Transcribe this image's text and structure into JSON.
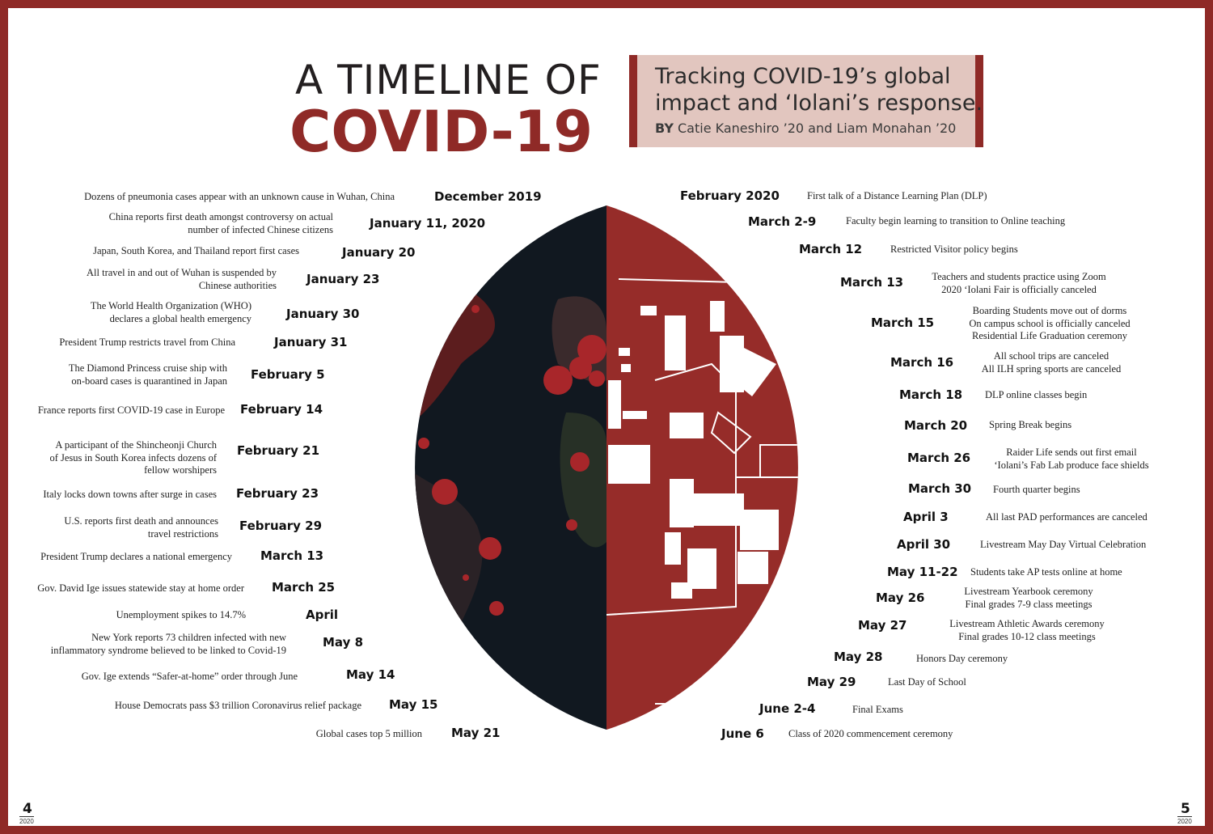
{
  "header": {
    "title_line1": "A TIMELINE OF",
    "title_line2": "COVID-19",
    "subtitle_line1": "Tracking COVID-19’s global",
    "subtitle_line2": "impact and ‘Iolani’s response.",
    "byline_prefix": "BY",
    "byline_names": "Catie Kaneshiro ’20 and Liam Monahan ’20"
  },
  "colors": {
    "accent": "#8f2a27",
    "globe_dark": "#111820",
    "subtitle_bg": "#e2c6bf"
  },
  "global_timeline": [
    {
      "date": "December 2019",
      "text": [
        "Dozens of pneumonia cases appear with an unknown cause in Wuhan, China"
      ]
    },
    {
      "date": "January 11, 2020",
      "text": [
        "China reports first death amongst controversy on actual",
        "number of infected Chinese citizens"
      ]
    },
    {
      "date": "January 20",
      "text": [
        "Japan, South Korea, and Thailand report first cases"
      ]
    },
    {
      "date": "January 23",
      "text": [
        "All travel in and out of Wuhan is suspended by",
        "Chinese authorities"
      ]
    },
    {
      "date": "January 30",
      "text": [
        "The World Health Organization (WHO)",
        "declares a global health emergency"
      ]
    },
    {
      "date": "January 31",
      "text": [
        "President Trump restricts travel from China"
      ]
    },
    {
      "date": "February 5",
      "text": [
        "The Diamond Princess cruise ship with",
        "on-board cases is quarantined in Japan"
      ]
    },
    {
      "date": "February 14",
      "text": [
        "France reports first COVID-19 case in Europe"
      ]
    },
    {
      "date": "February 21",
      "text": [
        "A participant of the Shincheonji Church",
        "of Jesus in South Korea infects dozens of",
        "fellow worshipers"
      ]
    },
    {
      "date": "February 23",
      "text": [
        "Italy locks down towns after surge in cases"
      ]
    },
    {
      "date": "February 29",
      "text": [
        "U.S. reports first death and announces",
        "travel restrictions"
      ]
    },
    {
      "date": "March 13",
      "text": [
        "President Trump declares a national emergency"
      ]
    },
    {
      "date": "March 25",
      "text": [
        "Gov. David Ige issues statewide stay at home order"
      ]
    },
    {
      "date": "April",
      "text": [
        "Unemployment spikes to  14.7%"
      ]
    },
    {
      "date": "May 8",
      "text": [
        "New York reports 73 children infected with new",
        "inflammatory syndrome believed to be linked to Covid-19"
      ]
    },
    {
      "date": "May 14",
      "text": [
        "Gov. Ige extends “Safer-at-home” order through June"
      ]
    },
    {
      "date": "May 15",
      "text": [
        "House Democrats pass $3 trillion Coronavirus relief package"
      ]
    },
    {
      "date": "May 21",
      "text": [
        "Global cases top 5 million"
      ]
    }
  ],
  "iolani_timeline": [
    {
      "date": "February 2020",
      "text": [
        "First talk of a Distance Learning Plan (DLP)"
      ]
    },
    {
      "date": "March 2-9",
      "text": [
        "Faculty begin learning to transition to Online teaching"
      ]
    },
    {
      "date": "March 12",
      "text": [
        "Restricted Visitor policy begins"
      ]
    },
    {
      "date": "March 13",
      "text": [
        "Teachers and students practice using Zoom",
        "2020 ‘Iolani Fair is officially canceled"
      ]
    },
    {
      "date": "March 15",
      "text": [
        "Boarding Students move out of dorms",
        "On campus school is officially canceled",
        "Residential Life Graduation ceremony"
      ]
    },
    {
      "date": "March 16",
      "text": [
        "All school trips are canceled",
        "All ILH spring sports are canceled"
      ]
    },
    {
      "date": "March 18",
      "text": [
        "DLP online classes begin"
      ]
    },
    {
      "date": "March 20",
      "text": [
        "Spring Break begins"
      ]
    },
    {
      "date": "March 26",
      "text": [
        "Raider Life sends out first email",
        "‘Iolani’s Fab Lab produce face shields"
      ]
    },
    {
      "date": "March 30",
      "text": [
        "Fourth quarter begins"
      ]
    },
    {
      "date": "April 3",
      "text": [
        "All last PAD performances are canceled"
      ]
    },
    {
      "date": "April 30",
      "text": [
        "Livestream May Day Virtual Celebration"
      ]
    },
    {
      "date": "May 11-22",
      "text": [
        "Students take AP tests online at home"
      ]
    },
    {
      "date": "May 26",
      "text": [
        "Livestream Yearbook ceremony",
        "Final grades 7-9 class meetings"
      ]
    },
    {
      "date": "May 27",
      "text": [
        "Livestream Athletic Awards ceremony",
        "Final grades 10-12 class meetings"
      ]
    },
    {
      "date": "May 28",
      "text": [
        "Honors Day ceremony"
      ]
    },
    {
      "date": "May 29",
      "text": [
        "Last Day of School"
      ]
    },
    {
      "date": "June 2-4",
      "text": [
        "Final Exams"
      ]
    },
    {
      "date": "June 6",
      "text": [
        "Class of 2020 commencement ceremony"
      ]
    }
  ],
  "footer": {
    "left_page": "4",
    "left_year": "2020",
    "right_page": "5",
    "right_year": "2020"
  }
}
